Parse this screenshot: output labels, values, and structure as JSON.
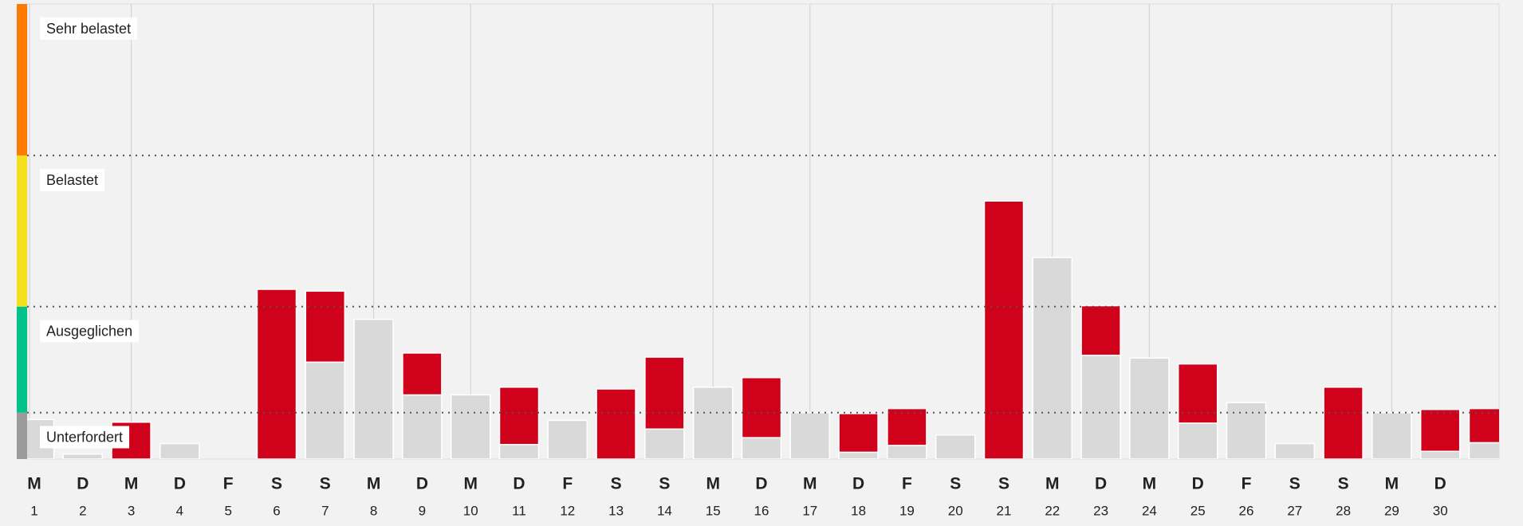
{
  "chart_data": {
    "type": "bar",
    "stacked": true,
    "categories": [
      "1",
      "2",
      "3",
      "4",
      "5",
      "6",
      "7",
      "8",
      "9",
      "10",
      "11",
      "12",
      "13",
      "14",
      "15",
      "16",
      "17",
      "18",
      "19",
      "20",
      "21",
      "22",
      "23",
      "24",
      "25",
      "26",
      "27",
      "28",
      "29",
      "30",
      null
    ],
    "weekdays": [
      "M",
      "D",
      "M",
      "D",
      "F",
      "S",
      "S",
      "M",
      "D",
      "M",
      "D",
      "F",
      "S",
      "S",
      "M",
      "D",
      "M",
      "D",
      "F",
      "S",
      "S",
      "M",
      "D",
      "M",
      "D",
      "F",
      "S",
      "S",
      "M",
      "D",
      null
    ],
    "series": [
      {
        "color": "#d9d9d9",
        "values": [
          8.7,
          1.1,
          0,
          3.4,
          0,
          0,
          21.3,
          30.7,
          14.1,
          14.1,
          3.2,
          8.5,
          0,
          6.6,
          15.8,
          4.7,
          10.2,
          1.5,
          3.0,
          5.3,
          0,
          44.3,
          22.8,
          22.2,
          7.9,
          12.4,
          3.4,
          0,
          10.2,
          1.7,
          3.6
        ]
      },
      {
        "color": "#d0021b",
        "values": [
          0,
          0,
          8.1,
          0,
          0,
          37.3,
          15.6,
          0,
          9.2,
          0,
          12.6,
          0,
          15.4,
          15.8,
          0,
          13.2,
          0,
          8.5,
          8.1,
          0,
          56.7,
          0,
          10.9,
          0,
          13.0,
          0,
          0,
          15.8,
          0,
          9.2,
          7.5
        ]
      }
    ],
    "ylim": [
      0,
      100
    ],
    "zones": [
      {
        "label": "Unterfordert",
        "color": "#9b9b9b",
        "to": 10.2
      },
      {
        "label": "Ausgeglichen",
        "color": "#00c389",
        "to": 33.5
      },
      {
        "label": "Belastet",
        "color": "#f5e11b",
        "to": 66.7
      },
      {
        "label": "Sehr belastet",
        "color": "#ff7a00",
        "to": 100
      }
    ],
    "week_start": "M"
  }
}
